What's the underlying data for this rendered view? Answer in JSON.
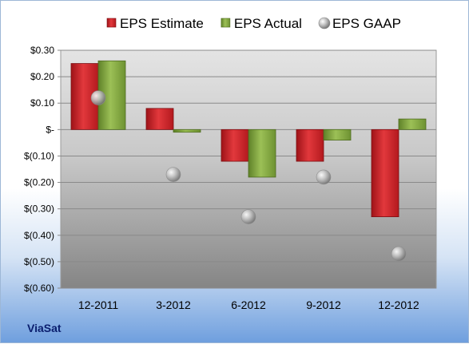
{
  "chart_data": {
    "type": "bar",
    "title": "",
    "company": "ViaSat",
    "categories": [
      "12-2011",
      "3-2012",
      "6-2012",
      "9-2012",
      "12-2012"
    ],
    "series": [
      {
        "name": "EPS Estimate",
        "kind": "bar",
        "color": "#cc1f24",
        "values": [
          0.25,
          0.08,
          -0.12,
          -0.12,
          -0.33
        ]
      },
      {
        "name": "EPS Actual",
        "kind": "bar",
        "color": "#7fa33c",
        "values": [
          0.26,
          -0.01,
          -0.18,
          -0.04,
          0.04
        ]
      },
      {
        "name": "EPS GAAP",
        "kind": "marker",
        "color": "#a9a9a9",
        "values": [
          0.12,
          -0.17,
          -0.33,
          -0.18,
          -0.47
        ]
      }
    ],
    "ylim": [
      -0.6,
      0.3
    ],
    "y_ticks": [
      0.3,
      0.2,
      0.1,
      0,
      -0.1,
      -0.2,
      -0.3,
      -0.4,
      -0.5,
      -0.6
    ],
    "y_tick_labels": [
      "$0.30",
      "$0.20",
      "$0.10",
      "$-",
      "$(0.10)",
      "$(0.20)",
      "$(0.30)",
      "$(0.40)",
      "$(0.50)",
      "$(0.60)"
    ],
    "grid": true,
    "legend_position": "top"
  }
}
